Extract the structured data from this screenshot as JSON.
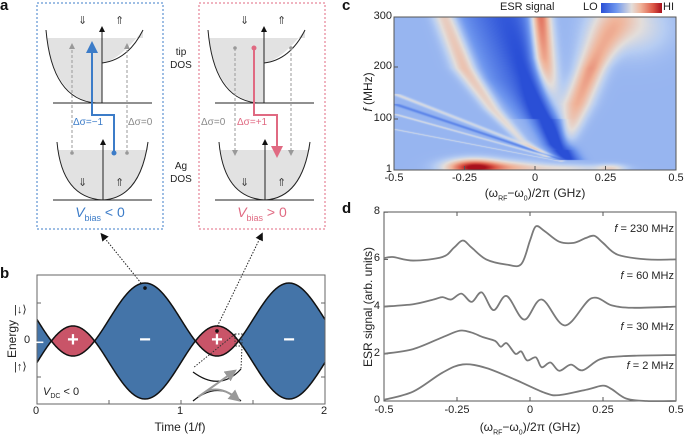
{
  "panel_labels": {
    "a": "a",
    "b": "b",
    "c": "c",
    "d": "d"
  },
  "colors": {
    "blue": "#4474a8",
    "red": "#c95468",
    "blue_box": "#3c7cc8",
    "red_box": "#e06a82",
    "gray_text": "#8a8a8a",
    "curve": "#7a7a7a"
  },
  "panel_a": {
    "spin_down": "⇓",
    "spin_up": "⇑",
    "tip_dos": [
      "tip",
      "DOS"
    ],
    "ag_dos": [
      "Ag",
      "DOS"
    ],
    "left": {
      "label_main": "Δσ=−1",
      "label_other": "Δσ=0",
      "v": "V",
      "sub": "bias",
      "cond": " < 0"
    },
    "right": {
      "label_main": "Δσ=+1",
      "label_other": "Δσ=0",
      "v": "V",
      "sub": "bias",
      "cond": " > 0"
    }
  },
  "chart_data": [
    {
      "panel": "b",
      "type": "area",
      "xlabel": "Time (1/f)",
      "ylabel": "Energy",
      "xlim": [
        0,
        2
      ],
      "xticks": [
        "0",
        "1",
        "2"
      ],
      "yticks": [
        "|↓⟩",
        "0",
        "|↑⟩"
      ],
      "model": "E(t) = -(sin(2πt) - 0.588)",
      "dc_offset": 0.588,
      "annotation_v": "V",
      "annotation_sub": "DC",
      "annotation_cond": " < 0",
      "lobes": [
        {
          "t": 0.02,
          "sign": "−"
        },
        {
          "t": 0.25,
          "sign": "+"
        },
        {
          "t": 0.75,
          "sign": "−"
        },
        {
          "t": 1.25,
          "sign": "+"
        },
        {
          "t": 1.75,
          "sign": "−"
        }
      ],
      "markers": [
        {
          "t": 0.75
        },
        {
          "t": 1.25
        }
      ]
    },
    {
      "panel": "c",
      "type": "heatmap",
      "title": "ESR signal",
      "colorbar_lo": "LO",
      "colorbar_hi": "HI",
      "xlabel": "(ωRF−ω0)/2π (GHz)",
      "xlabel_parts": {
        "open": "(ω",
        "sub1": "RF",
        "mid": "−ω",
        "sub2": "0",
        "close": ")/2π (GHz)"
      },
      "ylabel_f": "f",
      "ylabel_rest": " (MHz)",
      "xlim": [
        -0.5,
        0.5
      ],
      "ylim": [
        1,
        300
      ],
      "xticks": [
        "-0.5",
        "-0.25",
        "0",
        "0.25",
        "0.5"
      ],
      "yticks": [
        "300",
        "200",
        "100",
        "1"
      ],
      "base_value": -0.33,
      "ridges": [
        {
          "name": "center-red",
          "points": [
            [
              0.02,
              300,
              1.0,
              0.035
            ],
            [
              0.03,
              220,
              0.85,
              0.04
            ],
            [
              0.05,
              150,
              0.45,
              0.04
            ],
            [
              0.07,
              100,
              0.2,
              0.04
            ]
          ]
        },
        {
          "name": "right-red",
          "points": [
            [
              0.28,
              300,
              0.4,
              0.08
            ],
            [
              0.2,
              200,
              0.75,
              0.05
            ],
            [
              0.15,
              130,
              0.65,
              0.05
            ],
            [
              0.13,
              90,
              0.45,
              0.04
            ],
            [
              0.1,
              40,
              0.2,
              0.03
            ]
          ]
        },
        {
          "name": "left-red",
          "points": [
            [
              -0.32,
              300,
              0.5,
              0.04
            ],
            [
              -0.25,
              200,
              0.55,
              0.04
            ],
            [
              -0.15,
              120,
              0.4,
              0.03
            ],
            [
              -0.05,
              60,
              0.3,
              0.02
            ],
            [
              0.05,
              25,
              0.2,
              0.015
            ]
          ]
        },
        {
          "name": "main-blue",
          "points": [
            [
              -0.08,
              300,
              -0.45,
              0.08
            ],
            [
              -0.03,
              200,
              -0.55,
              0.06
            ],
            [
              0.03,
              110,
              -0.75,
              0.05
            ],
            [
              0.08,
              50,
              -0.95,
              0.04
            ],
            [
              0.12,
              20,
              -0.7,
              0.04
            ]
          ]
        },
        {
          "name": "left-blue",
          "points": [
            [
              -0.18,
              300,
              -0.35,
              0.1
            ],
            [
              -0.1,
              180,
              -0.35,
              0.08
            ],
            [
              0.0,
              100,
              -0.3,
              0.06
            ]
          ]
        },
        {
          "name": "fan-1",
          "points": [
            [
              -0.5,
              150,
              0.3,
              0.015
            ],
            [
              0.1,
              20,
              0.2,
              0.015
            ]
          ]
        },
        {
          "name": "fan-2",
          "points": [
            [
              -0.5,
              110,
              0.3,
              0.012
            ],
            [
              0.1,
              18,
              0.2,
              0.012
            ]
          ]
        },
        {
          "name": "fan-3",
          "points": [
            [
              -0.5,
              80,
              0.25,
              0.012
            ],
            [
              0.1,
              16,
              0.2,
              0.01
            ]
          ]
        },
        {
          "name": "fan-blue",
          "points": [
            [
              -0.5,
              130,
              -0.3,
              0.015
            ],
            [
              0.1,
              19,
              -0.3,
              0.012
            ]
          ]
        }
      ],
      "blobs": [
        {
          "x": -0.22,
          "f": 5,
          "amp": 1.25,
          "sx": 0.09,
          "sf": 15
        },
        {
          "x": -0.1,
          "f": 5,
          "amp": 0.5,
          "sx": 0.12,
          "sf": 12
        },
        {
          "x": 0.27,
          "f": 3,
          "amp": 0.35,
          "sx": 0.05,
          "sf": 8
        },
        {
          "x": 0.1,
          "f": 3,
          "amp": 0.3,
          "sx": 0.15,
          "sf": 8
        },
        {
          "x": 0.35,
          "f": 280,
          "amp": 0.3,
          "sx": 0.12,
          "sf": 50
        }
      ]
    },
    {
      "panel": "d",
      "type": "line",
      "xlabel_parts": {
        "open": "(ω",
        "sub1": "RF",
        "mid": "−ω",
        "sub2": "0",
        "close": ")/2π (GHz)"
      },
      "ylabel": "ESR signal (arb. units)",
      "xlim": [
        -0.5,
        0.5
      ],
      "ylim": [
        0,
        8
      ],
      "xticks": [
        "-0.5",
        "-0.25",
        "0",
        "0.25",
        "0.5"
      ],
      "yticks": [
        "0",
        "2",
        "4",
        "6",
        "8"
      ],
      "series": [
        {
          "f": "f",
          "name": " = 230 MHz",
          "label_y": 7.2,
          "points": [
            [
              -0.5,
              6.05
            ],
            [
              -0.47,
              6.1
            ],
            [
              -0.4,
              5.95
            ],
            [
              -0.3,
              6.1
            ],
            [
              -0.26,
              6.5
            ],
            [
              -0.23,
              6.8
            ],
            [
              -0.2,
              6.5
            ],
            [
              -0.15,
              6.0
            ],
            [
              -0.08,
              5.78
            ],
            [
              -0.03,
              5.8
            ],
            [
              0.0,
              6.8
            ],
            [
              0.02,
              7.4
            ],
            [
              0.05,
              7.2
            ],
            [
              0.1,
              6.75
            ],
            [
              0.15,
              6.7
            ],
            [
              0.19,
              6.9
            ],
            [
              0.22,
              7.0
            ],
            [
              0.25,
              6.7
            ],
            [
              0.3,
              6.2
            ],
            [
              0.4,
              6.0
            ],
            [
              0.5,
              6.0
            ]
          ]
        },
        {
          "f": "f",
          "name": " = 60 MHz",
          "label_y": 5.2,
          "points": [
            [
              -0.5,
              4.0
            ],
            [
              -0.4,
              4.1
            ],
            [
              -0.33,
              4.3
            ],
            [
              -0.3,
              4.4
            ],
            [
              -0.27,
              4.3
            ],
            [
              -0.235,
              4.55
            ],
            [
              -0.2,
              4.2
            ],
            [
              -0.165,
              4.6
            ],
            [
              -0.125,
              3.85
            ],
            [
              -0.08,
              4.45
            ],
            [
              -0.02,
              3.45
            ],
            [
              0.04,
              4.3
            ],
            [
              0.12,
              3.2
            ],
            [
              0.21,
              4.35
            ],
            [
              0.28,
              4.05
            ],
            [
              0.35,
              3.95
            ],
            [
              0.5,
              4.0
            ]
          ]
        },
        {
          "f": "f",
          "name": " = 30 MHz",
          "label_y": 3.05,
          "points": [
            [
              -0.5,
              2.0
            ],
            [
              -0.4,
              2.2
            ],
            [
              -0.3,
              2.7
            ],
            [
              -0.24,
              2.98
            ],
            [
              -0.2,
              2.9
            ],
            [
              -0.16,
              2.7
            ],
            [
              -0.12,
              2.55
            ],
            [
              -0.1,
              2.3
            ],
            [
              -0.08,
              2.45
            ],
            [
              -0.05,
              2.0
            ],
            [
              -0.03,
              2.1
            ],
            [
              -0.01,
              1.72
            ],
            [
              0.02,
              1.85
            ],
            [
              0.04,
              1.43
            ],
            [
              0.07,
              1.63
            ],
            [
              0.1,
              1.28
            ],
            [
              0.14,
              1.54
            ],
            [
              0.18,
              1.3
            ],
            [
              0.24,
              1.77
            ],
            [
              0.32,
              1.9
            ],
            [
              0.5,
              1.95
            ]
          ]
        },
        {
          "f": "f",
          "name": " = 2 MHz",
          "label_y": 1.4,
          "points": [
            [
              -0.5,
              0.05
            ],
            [
              -0.4,
              0.4
            ],
            [
              -0.3,
              1.2
            ],
            [
              -0.23,
              1.55
            ],
            [
              -0.15,
              1.4
            ],
            [
              -0.05,
              0.9
            ],
            [
              0.05,
              0.35
            ],
            [
              0.1,
              0.25
            ],
            [
              0.2,
              0.5
            ],
            [
              0.25,
              0.65
            ],
            [
              0.28,
              0.5
            ],
            [
              0.33,
              0.1
            ],
            [
              0.4,
              0.0
            ],
            [
              0.5,
              0.0
            ]
          ]
        }
      ]
    }
  ]
}
